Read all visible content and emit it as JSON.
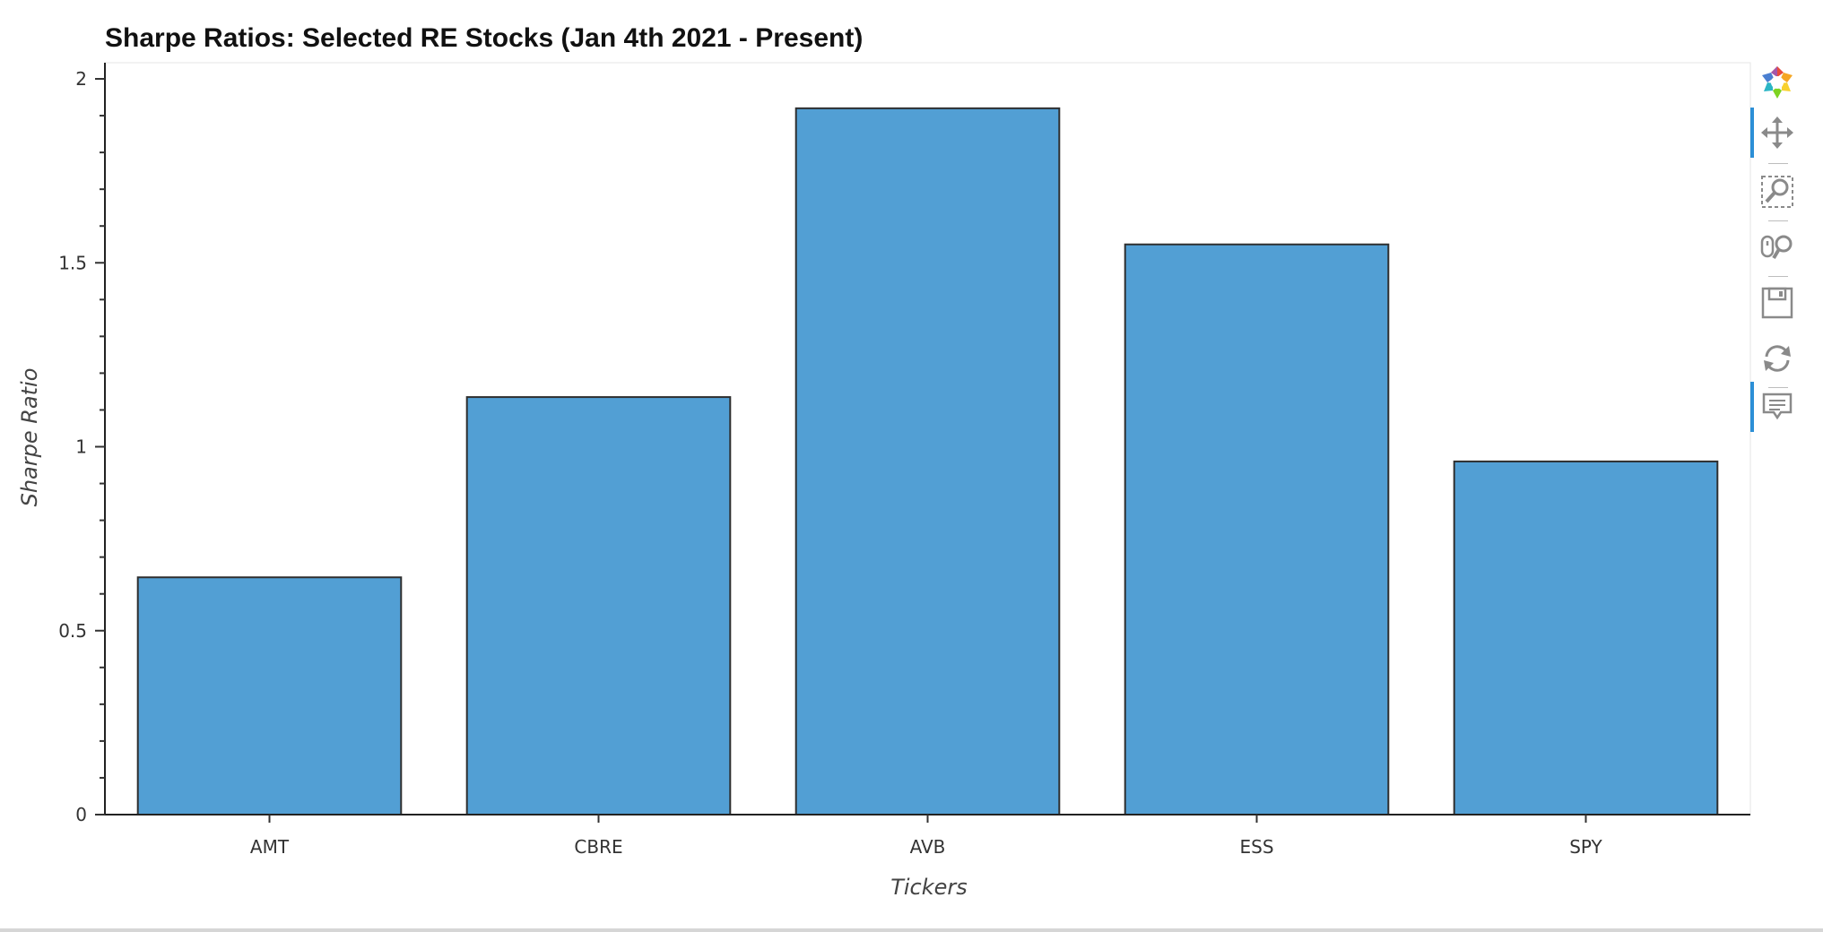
{
  "chart_data": {
    "type": "bar",
    "title": "Sharpe Ratios: Selected RE Stocks (Jan 4th 2021 - Present)",
    "xlabel": "Tickers",
    "ylabel": "Sharpe Ratio",
    "categories": [
      "AMT",
      "CBRE",
      "AVB",
      "ESS",
      "SPY"
    ],
    "values": [
      0.645,
      1.135,
      1.92,
      1.55,
      0.96
    ],
    "ylim": [
      0,
      2
    ],
    "yticks": [
      0,
      0.5,
      1,
      1.5,
      2
    ],
    "ytick_labels": [
      "0",
      "0.5",
      "1",
      "1.5",
      "2"
    ],
    "grid": false,
    "legend": "none",
    "bar_color": "#529fd4"
  },
  "toolbar": {
    "tools": [
      {
        "icon": "bokeh-logo-icon",
        "active": false
      },
      {
        "icon": "pan-icon",
        "active": true
      },
      {
        "icon": "box-zoom-icon",
        "active": false
      },
      {
        "icon": "wheel-zoom-icon",
        "active": false
      },
      {
        "icon": "save-icon",
        "active": false
      },
      {
        "icon": "reset-icon",
        "active": false
      },
      {
        "icon": "hover-icon",
        "active": true
      }
    ]
  }
}
